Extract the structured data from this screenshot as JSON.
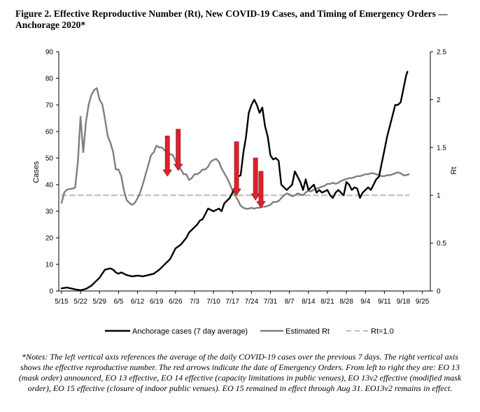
{
  "title": "Figure 2. Effective Reproductive Number (Rt), New COVID-19 Cases, and Timing of Emergency Orders — Anchorage 2020*",
  "notes": "*Notes: The left vertical axis references the average of the daily COVID-19 cases over the previous 7 days. The right vertical axis shows the effective reproductive number. The red arrows indicate the date of Emergency Orders. From left to right they are: EO 13 (mask order) announced, EO 13 effective, EO 14 effective (capacity limitations in public venues), EO 13v2 effective (modified mask order), EO 15 effective (closure of indoor public venues). EO 15 remained in effect through Aug 31. EO13v2 remains in effect.",
  "colors": {
    "cases": "#000000",
    "rt": "#7f7f7f",
    "ref": "#bfbfbf",
    "arrow": "#e0202e",
    "arrow_edge": "#8b1a1a"
  },
  "chart_data": {
    "type": "line",
    "title": "Figure 2. Effective Reproductive Number (Rt), New COVID-19 Cases, and Timing of Emergency Orders — Anchorage 2020*",
    "xlabel": "",
    "ylabel": "Cases",
    "y2label": "Rt",
    "ylim": [
      0,
      90
    ],
    "y2lim": [
      0,
      2.5
    ],
    "yticks": [
      "0",
      "10",
      "20",
      "30",
      "40",
      "50",
      "60",
      "70",
      "80",
      "90"
    ],
    "y2ticks": [
      "0",
      "0.5",
      "1",
      "1.5",
      "2",
      "2.5"
    ],
    "x_start": "5/15",
    "xticks": [
      "5/15",
      "5/22",
      "5/29",
      "6/5",
      "6/12",
      "6/19",
      "6/26",
      "7/3",
      "7/10",
      "7/17",
      "7/24",
      "7/31",
      "8/7",
      "8/14",
      "8/21",
      "8/28",
      "9/4",
      "9/11",
      "9/18",
      "9/25"
    ],
    "x_days_total": 138,
    "series": [
      {
        "name": "Anchorage cases (7 day average)",
        "axis": "left",
        "style": "solid-black",
        "points": [
          [
            0,
            1
          ],
          [
            2,
            1.3
          ],
          [
            5,
            0.6
          ],
          [
            7,
            0.3
          ],
          [
            9,
            0.8
          ],
          [
            11,
            2
          ],
          [
            13,
            4
          ],
          [
            14,
            5
          ],
          [
            16,
            8
          ],
          [
            18,
            8.5
          ],
          [
            19,
            8
          ],
          [
            20,
            7
          ],
          [
            21,
            6.5
          ],
          [
            22,
            7
          ],
          [
            24,
            6
          ],
          [
            26,
            5.5
          ],
          [
            28,
            5.8
          ],
          [
            30,
            5.5
          ],
          [
            32,
            6
          ],
          [
            34,
            6.5
          ],
          [
            36,
            8
          ],
          [
            38,
            10
          ],
          [
            40,
            12
          ],
          [
            41,
            14
          ],
          [
            42,
            16
          ],
          [
            44,
            17.5
          ],
          [
            46,
            20
          ],
          [
            47,
            22
          ],
          [
            48,
            23
          ],
          [
            50,
            25
          ],
          [
            51,
            26.5
          ],
          [
            52,
            27
          ],
          [
            54,
            31
          ],
          [
            56,
            30
          ],
          [
            57,
            30.5
          ],
          [
            58,
            31
          ],
          [
            59,
            30
          ],
          [
            60,
            33
          ],
          [
            62,
            35
          ],
          [
            64,
            39
          ],
          [
            65,
            43
          ],
          [
            66,
            43.5
          ],
          [
            67,
            52
          ],
          [
            68,
            58
          ],
          [
            69,
            67
          ],
          [
            70,
            70
          ],
          [
            71,
            72
          ],
          [
            72,
            70
          ],
          [
            73,
            67
          ],
          [
            74,
            69
          ],
          [
            75,
            62
          ],
          [
            76,
            58
          ],
          [
            77,
            51
          ],
          [
            78,
            49.5
          ],
          [
            79,
            50
          ],
          [
            80,
            49
          ],
          [
            81,
            40
          ],
          [
            82,
            39
          ],
          [
            83,
            38
          ],
          [
            84,
            39
          ],
          [
            85,
            40
          ],
          [
            86,
            45
          ],
          [
            87,
            43
          ],
          [
            88,
            41
          ],
          [
            89,
            38
          ],
          [
            90,
            42
          ],
          [
            91,
            38
          ],
          [
            92,
            39
          ],
          [
            93,
            40
          ],
          [
            94,
            37
          ],
          [
            95,
            38
          ],
          [
            96,
            37
          ],
          [
            98,
            38
          ],
          [
            99,
            36
          ],
          [
            100,
            35
          ],
          [
            101,
            37
          ],
          [
            102,
            38
          ],
          [
            103,
            37
          ],
          [
            104,
            36
          ],
          [
            105,
            41
          ],
          [
            106,
            40
          ],
          [
            107,
            38
          ],
          [
            108,
            39
          ],
          [
            109,
            38.5
          ],
          [
            110,
            35
          ],
          [
            111,
            37
          ],
          [
            112,
            38
          ],
          [
            113,
            39
          ],
          [
            114,
            38
          ],
          [
            116,
            42
          ],
          [
            117,
            43
          ],
          [
            118,
            48
          ],
          [
            119,
            53
          ],
          [
            120,
            58
          ],
          [
            121,
            62
          ],
          [
            122,
            66
          ],
          [
            123,
            70
          ],
          [
            124,
            70
          ],
          [
            125,
            71
          ],
          [
            126,
            76
          ],
          [
            127,
            81
          ],
          [
            127.5,
            82.5
          ]
        ]
      },
      {
        "name": "Estimated Rt",
        "axis": "right",
        "style": "solid-gray",
        "points": [
          [
            0,
            0.92
          ],
          [
            1,
            1.03
          ],
          [
            2,
            1.06
          ],
          [
            4,
            1.07
          ],
          [
            5,
            1.08
          ],
          [
            6,
            1.35
          ],
          [
            7,
            1.82
          ],
          [
            8,
            1.45
          ],
          [
            9,
            1.77
          ],
          [
            10,
            1.95
          ],
          [
            11,
            2.05
          ],
          [
            12,
            2.1
          ],
          [
            13,
            2.12
          ],
          [
            14,
            2.0
          ],
          [
            15,
            1.95
          ],
          [
            16,
            1.8
          ],
          [
            17,
            1.62
          ],
          [
            18,
            1.55
          ],
          [
            19,
            1.45
          ],
          [
            20,
            1.27
          ],
          [
            21,
            1.27
          ],
          [
            22,
            1.2
          ],
          [
            23,
            1.05
          ],
          [
            24,
            0.95
          ],
          [
            25,
            0.92
          ],
          [
            26,
            0.9
          ],
          [
            27,
            0.92
          ],
          [
            28,
            0.97
          ],
          [
            29,
            1.03
          ],
          [
            30,
            1.12
          ],
          [
            31,
            1.22
          ],
          [
            32,
            1.32
          ],
          [
            33,
            1.42
          ],
          [
            34,
            1.45
          ],
          [
            35,
            1.52
          ],
          [
            36,
            1.5
          ],
          [
            37,
            1.5
          ],
          [
            38,
            1.47
          ],
          [
            39,
            1.45
          ],
          [
            40,
            1.43
          ],
          [
            41,
            1.42
          ],
          [
            42,
            1.36
          ],
          [
            43,
            1.3
          ],
          [
            44,
            1.27
          ],
          [
            45,
            1.22
          ],
          [
            46,
            1.22
          ],
          [
            47,
            1.16
          ],
          [
            48,
            1.18
          ],
          [
            49,
            1.22
          ],
          [
            50,
            1.22
          ],
          [
            51,
            1.24
          ],
          [
            52,
            1.27
          ],
          [
            53,
            1.27
          ],
          [
            54,
            1.3
          ],
          [
            55,
            1.35
          ],
          [
            56,
            1.37
          ],
          [
            57,
            1.38
          ],
          [
            58,
            1.35
          ],
          [
            59,
            1.28
          ],
          [
            60,
            1.23
          ],
          [
            61,
            1.18
          ],
          [
            62,
            1.12
          ],
          [
            63,
            1.05
          ],
          [
            64,
            1.0
          ],
          [
            65,
            0.95
          ],
          [
            66,
            0.89
          ],
          [
            67,
            0.87
          ],
          [
            68,
            0.86
          ],
          [
            69,
            0.86
          ],
          [
            70,
            0.87
          ],
          [
            71,
            0.86
          ],
          [
            72,
            0.87
          ],
          [
            73,
            0.87
          ],
          [
            74,
            0.88
          ],
          [
            75,
            0.88
          ],
          [
            76,
            0.89
          ],
          [
            77,
            0.9
          ],
          [
            78,
            0.93
          ],
          [
            79,
            0.93
          ],
          [
            80,
            0.94
          ],
          [
            81,
            0.97
          ],
          [
            82,
            1.0
          ],
          [
            83,
            1.02
          ],
          [
            84,
            1.01
          ],
          [
            85,
            0.99
          ],
          [
            86,
            1.0
          ],
          [
            87,
            1.02
          ],
          [
            88,
            1.01
          ],
          [
            89,
            1.0
          ],
          [
            90,
            1.03
          ],
          [
            91,
            1.05
          ],
          [
            92,
            1.04
          ],
          [
            93,
            1.06
          ],
          [
            94,
            1.07
          ],
          [
            95,
            1.08
          ],
          [
            96,
            1.09
          ],
          [
            97,
            1.1
          ],
          [
            98,
            1.12
          ],
          [
            99,
            1.12
          ],
          [
            100,
            1.13
          ],
          [
            101,
            1.12
          ],
          [
            102,
            1.13
          ],
          [
            103,
            1.15
          ],
          [
            104,
            1.16
          ],
          [
            105,
            1.17
          ],
          [
            106,
            1.18
          ],
          [
            107,
            1.18
          ],
          [
            108,
            1.19
          ],
          [
            109,
            1.2
          ],
          [
            110,
            1.2
          ],
          [
            111,
            1.21
          ],
          [
            112,
            1.22
          ],
          [
            113,
            1.22
          ],
          [
            114,
            1.23
          ],
          [
            115,
            1.23
          ],
          [
            116,
            1.22
          ],
          [
            117,
            1.21
          ],
          [
            118,
            1.2
          ],
          [
            119,
            1.2
          ],
          [
            120,
            1.21
          ],
          [
            121,
            1.21
          ],
          [
            122,
            1.22
          ],
          [
            123,
            1.23
          ],
          [
            124,
            1.24
          ],
          [
            125,
            1.23
          ],
          [
            126,
            1.21
          ],
          [
            127,
            1.21
          ],
          [
            128,
            1.22
          ]
        ]
      },
      {
        "name": "Rt=1.0",
        "axis": "right",
        "style": "dashed-light-gray",
        "points": [
          [
            0,
            1.0
          ],
          [
            128,
            1.0
          ]
        ]
      }
    ],
    "arrows": [
      {
        "label": "EO 13 (mask order) announced",
        "day": 39,
        "rt_top": 1.62,
        "rt_tip": 1.2
      },
      {
        "label": "EO 13 effective",
        "day": 43,
        "rt_top": 1.69,
        "rt_tip": 1.26
      },
      {
        "label": "EO 14 effective (capacity limitations in public venues)",
        "day": 64.5,
        "rt_top": 1.56,
        "rt_tip": 1.0
      },
      {
        "label": "EO 13v2 effective (modified mask order)",
        "day": 71.5,
        "rt_top": 1.39,
        "rt_tip": 0.95
      },
      {
        "label": "EO 15 effective (closure of indoor public venues)",
        "day": 73.5,
        "rt_top": 1.25,
        "rt_tip": 0.87
      }
    ],
    "legend": [
      {
        "label": "Anchorage cases (7 day average)",
        "style": "solid-black"
      },
      {
        "label": "Estimated Rt",
        "style": "solid-gray"
      },
      {
        "label": "Rt=1.0",
        "style": "dashed-light-gray"
      }
    ],
    "legend_position": "bottom"
  }
}
